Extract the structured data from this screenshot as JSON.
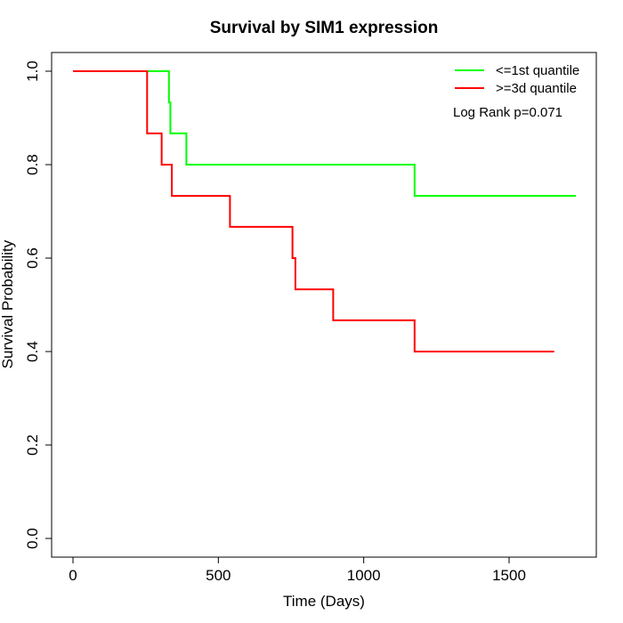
{
  "chart_data": {
    "type": "line",
    "title": "Survival by SIM1 expression",
    "xlabel": "Time (Days)",
    "ylabel": "Survival Probability",
    "xlim": [
      0,
      1800
    ],
    "ylim": [
      0,
      1.0
    ],
    "x_ticks": [
      0,
      500,
      1000,
      1500
    ],
    "x_tick_labels": [
      "0",
      "500",
      "1000",
      "1500"
    ],
    "y_ticks": [
      0.0,
      0.2,
      0.4,
      0.6,
      0.8,
      1.0
    ],
    "y_tick_labels": [
      "0.0",
      "0.2",
      "0.4",
      "0.6",
      "0.8",
      "1.0"
    ],
    "grid": false,
    "legend_position": "top-right",
    "annotation": "Log Rank p=0.071",
    "series": [
      {
        "name": "<=1st quantile",
        "color": "#00ff00",
        "step": true,
        "x": [
          0,
          330,
          335,
          390,
          1175,
          1730
        ],
        "y": [
          1.0,
          0.933,
          0.867,
          0.8,
          0.733,
          0.733
        ]
      },
      {
        "name": ">=3d quantile",
        "color": "#ff0000",
        "step": true,
        "x": [
          0,
          255,
          305,
          340,
          540,
          755,
          765,
          895,
          1175,
          1655
        ],
        "y": [
          1.0,
          0.867,
          0.8,
          0.733,
          0.667,
          0.6,
          0.533,
          0.467,
          0.4,
          0.4
        ]
      }
    ]
  }
}
